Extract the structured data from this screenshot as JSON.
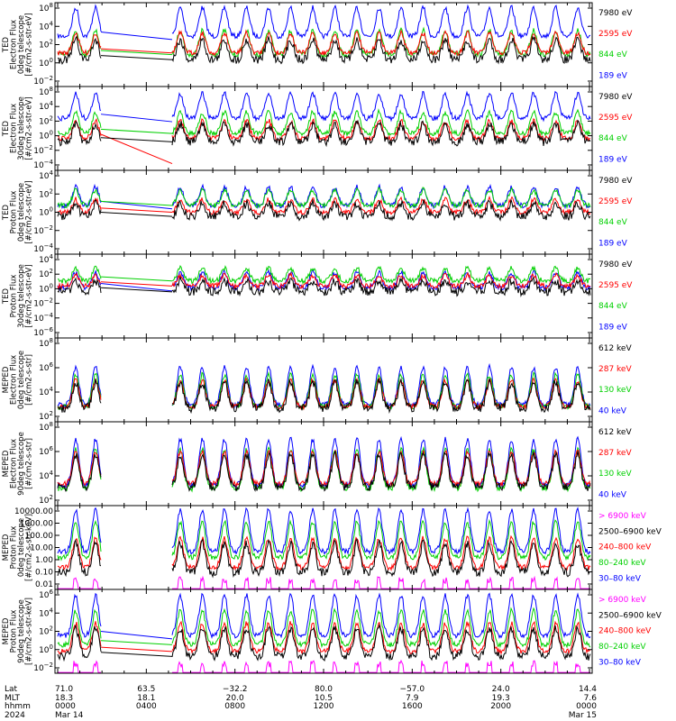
{
  "colors": {
    "black": "#000000",
    "red": "#ff0000",
    "green": "#00d000",
    "blue": "#0000ff",
    "magenta": "#ff00ff"
  },
  "footer": {
    "row_labels": [
      "Lat",
      "MLT",
      "hhmm",
      "2024"
    ],
    "columns": [
      {
        "lat": "71.0",
        "mlt": "18.3",
        "hhmm": "0000",
        "date": "Mar 14"
      },
      {
        "lat": "63.5",
        "mlt": "18.1",
        "hhmm": "0400",
        "date": ""
      },
      {
        "lat": "−32.2",
        "mlt": "20.0",
        "hhmm": "0800",
        "date": ""
      },
      {
        "lat": "80.0",
        "mlt": "10.5",
        "hhmm": "1200",
        "date": ""
      },
      {
        "lat": "−57.0",
        "mlt": "7.9",
        "hhmm": "1600",
        "date": ""
      },
      {
        "lat": "24.0",
        "mlt": "19.3",
        "hhmm": "2000",
        "date": ""
      },
      {
        "lat": "14.4",
        "mlt": "7.6",
        "hhmm": "0000",
        "date": "Mar 15"
      }
    ]
  },
  "chart_data": [
    {
      "type": "line",
      "scale": "log",
      "ylabel_lines": [
        "TED",
        "Electron Flux",
        "0deg telescope",
        "[#/cm2-s-str-eV]"
      ],
      "yticks": [
        "10^8",
        "10^4",
        "10^2",
        "10^0",
        "10^-2"
      ],
      "legend": [
        {
          "label": "7980 eV",
          "color": "black"
        },
        {
          "label": "2595 eV",
          "color": "red"
        },
        {
          "label": "844 eV",
          "color": "green"
        },
        {
          "label": "189 eV",
          "color": "blue"
        }
      ]
    },
    {
      "type": "line",
      "scale": "log",
      "ylabel_lines": [
        "TED",
        "Electron Flux",
        "30deg telescope",
        "[#/cm2-s-str-eV]"
      ],
      "yticks": [
        "10^8",
        "10^4",
        "10^2",
        "10^0",
        "10^-2",
        "10^-4"
      ],
      "legend": [
        {
          "label": "7980 eV",
          "color": "black"
        },
        {
          "label": "2595 eV",
          "color": "red"
        },
        {
          "label": "844 eV",
          "color": "green"
        },
        {
          "label": "189 eV",
          "color": "blue"
        }
      ]
    },
    {
      "type": "line",
      "scale": "log",
      "ylabel_lines": [
        "TED",
        "Proton Flux",
        "0deg telescope",
        "[#/cm2-s-str-eV]"
      ],
      "yticks": [
        "10^4",
        "10^2",
        "10^0",
        "10^-2",
        "10^-4"
      ],
      "legend": [
        {
          "label": "7980 eV",
          "color": "black"
        },
        {
          "label": "2595 eV",
          "color": "red"
        },
        {
          "label": "844 eV",
          "color": "green"
        },
        {
          "label": "189 eV",
          "color": "blue"
        }
      ]
    },
    {
      "type": "line",
      "scale": "log",
      "ylabel_lines": [
        "TED",
        "Proton Flux",
        "30deg telescope",
        "[#/cm2-s-str-eV]"
      ],
      "yticks": [
        "10^4",
        "10^2",
        "10^0",
        "10^-2",
        "10^-4",
        "10^-6"
      ],
      "legend": [
        {
          "label": "7980 eV",
          "color": "black"
        },
        {
          "label": "2595 eV",
          "color": "red"
        },
        {
          "label": "844 eV",
          "color": "green"
        },
        {
          "label": "189 eV",
          "color": "blue"
        }
      ]
    },
    {
      "type": "line",
      "scale": "log",
      "ylabel_lines": [
        "MEPED",
        "Electron Flux",
        "0deg telescope",
        "[#/cm2-s-str]"
      ],
      "yticks": [
        "10^8",
        "10^6",
        "10^4",
        "10^2"
      ],
      "legend": [
        {
          "label": "612 keV",
          "color": "black"
        },
        {
          "label": "287 keV",
          "color": "red"
        },
        {
          "label": "130 keV",
          "color": "green"
        },
        {
          "label": "40 keV",
          "color": "blue"
        }
      ]
    },
    {
      "type": "line",
      "scale": "log",
      "ylabel_lines": [
        "MEPED",
        "Electron Flux",
        "90deg telescope",
        "[#/cm2-s-str]"
      ],
      "yticks": [
        "10^8",
        "10^6",
        "10^4",
        "10^2"
      ],
      "legend": [
        {
          "label": "612 keV",
          "color": "black"
        },
        {
          "label": "287 keV",
          "color": "red"
        },
        {
          "label": "130 keV",
          "color": "green"
        },
        {
          "label": "40 keV",
          "color": "blue"
        }
      ]
    },
    {
      "type": "line",
      "scale": "log",
      "ylabel_lines": [
        "MEPED",
        "Proton Flux",
        "0deg telescope",
        "[#/cm2-s-str-keV]"
      ],
      "yticks": [
        "10000.00",
        "1000.00",
        "100.00",
        "10.00",
        "1.00",
        "0.10",
        "0.01"
      ],
      "legend": [
        {
          "label": "> 6900 keV",
          "color": "magenta"
        },
        {
          "label": "2500–6900 keV",
          "color": "black"
        },
        {
          "label": "240–800 keV",
          "color": "red"
        },
        {
          "label": "80–240 keV",
          "color": "green"
        },
        {
          "label": "30–80 keV",
          "color": "blue"
        }
      ]
    },
    {
      "type": "line",
      "scale": "log",
      "ylabel_lines": [
        "MEPED",
        "Proton Flux",
        "90deg telescope",
        "[#/cm2-s-str-keV]"
      ],
      "yticks": [
        "10^6",
        "10^4",
        "10^2",
        "10^0",
        "10^-2"
      ],
      "legend": [
        {
          "label": "> 6900 keV",
          "color": "magenta"
        },
        {
          "label": "2500–6900 keV",
          "color": "black"
        },
        {
          "label": "240–800 keV",
          "color": "red"
        },
        {
          "label": "80–240 keV",
          "color": "green"
        },
        {
          "label": "30–80 keV",
          "color": "blue"
        }
      ]
    }
  ]
}
